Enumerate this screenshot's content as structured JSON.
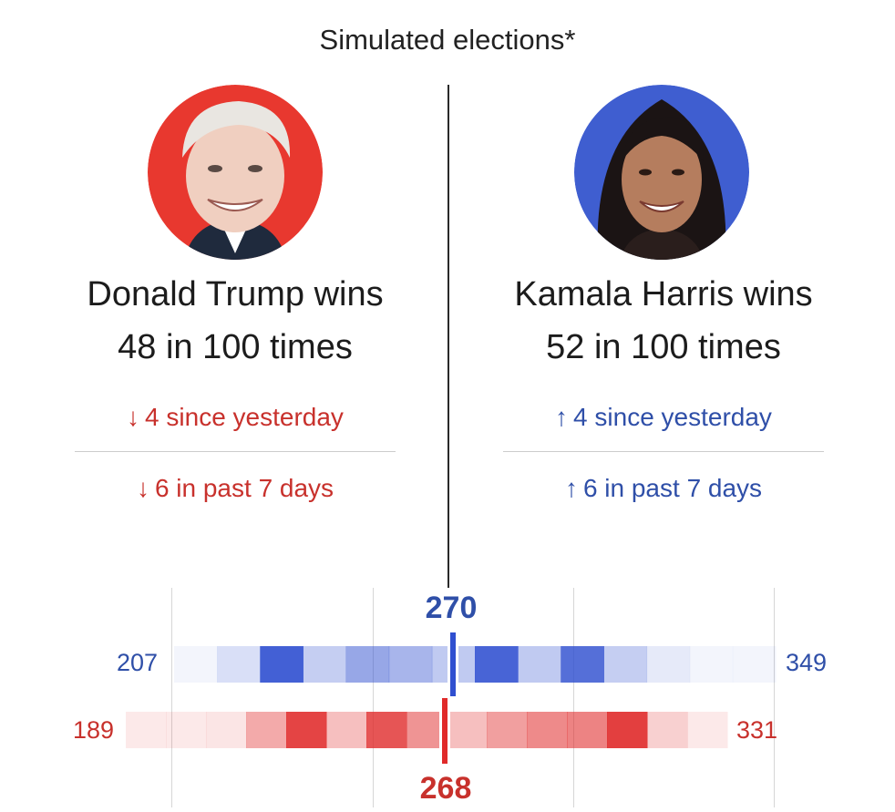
{
  "title": "Simulated elections*",
  "candidates": {
    "trump": {
      "name_line": "Donald Trump wins",
      "odds_line": "48 in 100 times",
      "change_day": "4 since yesterday",
      "change_week": "6 in past 7 days",
      "direction": "down",
      "arrow": "↓",
      "color": "#c8312c",
      "ring_color": "#e8382f"
    },
    "harris": {
      "name_line": "Kamala Harris wins",
      "odds_line": "52 in 100 times",
      "change_day": "4 since yesterday",
      "change_week": "6 in past 7 days",
      "direction": "up",
      "arrow": "↑",
      "color": "#2f4fa8",
      "ring_color": "#3f5ed0"
    }
  },
  "chart_data": {
    "type": "heatmap",
    "threshold_labels": {
      "blue": "270",
      "red": "268"
    },
    "rows": [
      {
        "name": "",
        "party": "harris",
        "min_label": "207",
        "max_label": "349",
        "min": 207,
        "max": 349,
        "marker": 270,
        "color": "#2f4fd0",
        "intensities": [
          0.06,
          0.18,
          0.9,
          0.28,
          0.5,
          0.42,
          0.3,
          0.88,
          0.3,
          0.82,
          0.28,
          0.12,
          0.06,
          0.06
        ]
      },
      {
        "name": "",
        "party": "trump",
        "min_label": "189",
        "max_label": "331",
        "min": 189,
        "max": 331,
        "marker": 268,
        "color": "#e02a2a",
        "intensities": [
          0.1,
          0.1,
          0.12,
          0.4,
          0.88,
          0.3,
          0.8,
          0.5,
          0.3,
          0.45,
          0.55,
          0.58,
          0.9,
          0.22,
          0.1
        ]
      }
    ]
  }
}
